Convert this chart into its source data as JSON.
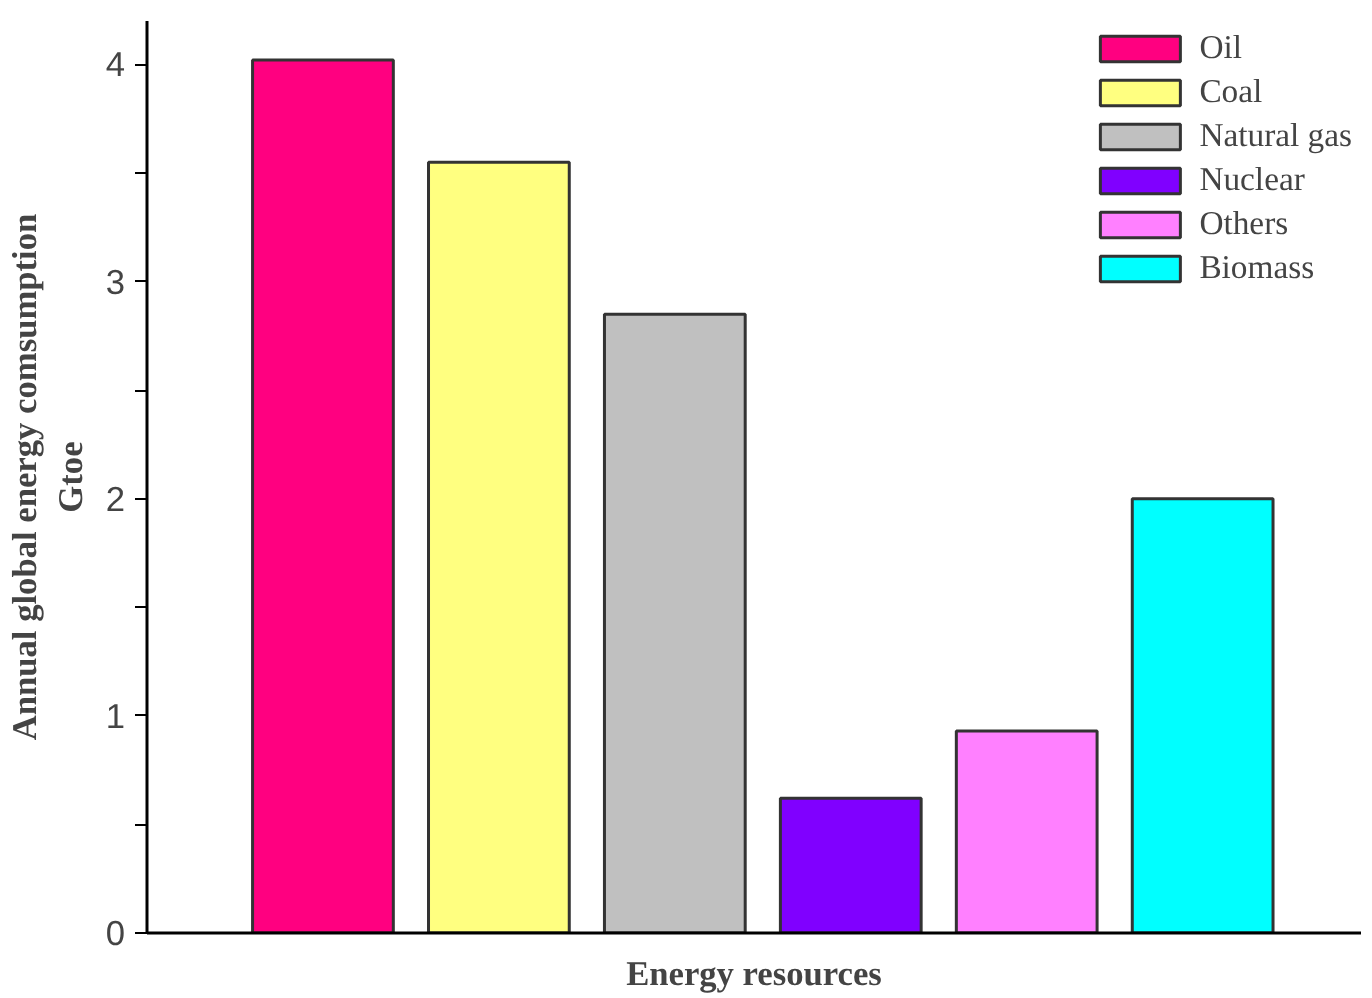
{
  "chart_data": {
    "type": "bar",
    "xlabel": "Energy resources",
    "ylabel": "Annual global energy comsumption\nGtoe",
    "categories": [
      null,
      null,
      null,
      null,
      null,
      null
    ],
    "series": [
      {
        "name": "Oil",
        "color": "#ff0080",
        "values": [
          4.02,
          null,
          null,
          null,
          null,
          null
        ]
      },
      {
        "name": "Coal",
        "color": "#ffff80",
        "values": [
          null,
          3.55,
          null,
          null,
          null,
          null
        ]
      },
      {
        "name": "Natural gas",
        "color": "#c0c0c0",
        "values": [
          null,
          null,
          2.85,
          null,
          null,
          null
        ]
      },
      {
        "name": "Nuclear",
        "color": "#8000ff",
        "values": [
          null,
          null,
          null,
          0.62,
          null,
          null
        ]
      },
      {
        "name": "Others",
        "color": "#ff80ff",
        "values": [
          null,
          null,
          null,
          null,
          0.93,
          null
        ]
      },
      {
        "name": "Biomass",
        "color": "#00ffff",
        "values": [
          null,
          null,
          null,
          null,
          null,
          2.0
        ]
      }
    ],
    "ylim": [
      0,
      4.2
    ],
    "yticks": [
      0,
      {
        "value": 0.5,
        "label": null
      },
      1,
      {
        "value": 1.5,
        "label": null
      },
      2,
      {
        "value": 2.5,
        "label": null
      },
      3,
      {
        "value": 3.5,
        "label": null
      },
      4
    ],
    "tick_labels": "y",
    "legend": "top right",
    "grid": false
  }
}
